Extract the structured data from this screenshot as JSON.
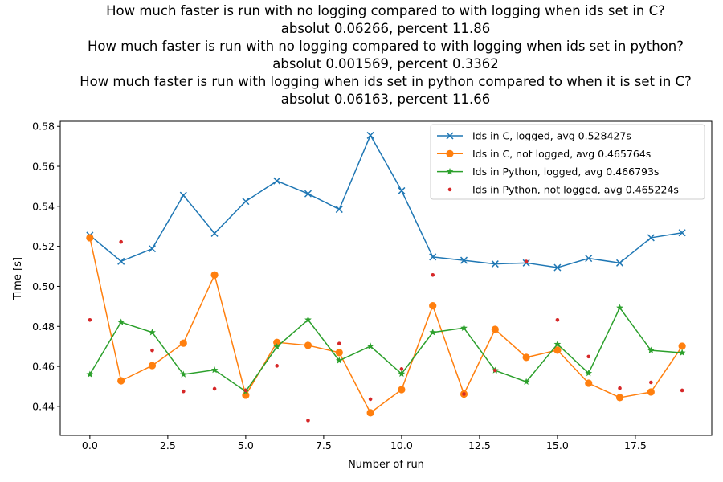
{
  "chart_data": {
    "type": "line",
    "title_lines": [
      "How much faster is run with no logging compared to with logging when ids set in C?",
      "absolut 0.06266, percent  11.86",
      "How much faster is run with no logging compared to with logging when ids set in python?",
      "absolut 0.001569, percent 0.3362",
      "How much faster is run with logging when ids set in python compared to when it is set in C?",
      "absolut 0.06163, percent 11.66"
    ],
    "xlabel": "Number of run",
    "ylabel": "Time [s]",
    "xlim": [
      -0.95,
      19.95
    ],
    "ylim": [
      0.4255,
      0.5825
    ],
    "x_ticks": [
      0.0,
      2.5,
      5.0,
      7.5,
      10.0,
      12.5,
      15.0,
      17.5
    ],
    "x_tick_labels": [
      "0.0",
      "2.5",
      "5.0",
      "7.5",
      "10.0",
      "12.5",
      "15.0",
      "17.5"
    ],
    "y_ticks": [
      0.44,
      0.46,
      0.48,
      0.5,
      0.52,
      0.54,
      0.56,
      0.58
    ],
    "y_tick_labels": [
      "0.44",
      "0.46",
      "0.48",
      "0.50",
      "0.52",
      "0.54",
      "0.56",
      "0.58"
    ],
    "grid": false,
    "legend_position": "upper-right",
    "x": [
      0,
      1,
      2,
      3,
      4,
      5,
      6,
      7,
      8,
      9,
      10,
      11,
      12,
      13,
      14,
      15,
      16,
      17,
      18,
      19
    ],
    "series": [
      {
        "name": "Ids in C, logged, avg 0.528427s",
        "color": "#1f77b4",
        "marker": "x",
        "line": true,
        "values": [
          0.5255,
          0.5125,
          0.5188,
          0.5455,
          0.5265,
          0.5425,
          0.5527,
          0.5463,
          0.5385,
          0.5755,
          0.5478,
          0.5147,
          0.513,
          0.5112,
          0.5117,
          0.5094,
          0.514,
          0.5117,
          0.5243,
          0.5268
        ]
      },
      {
        "name": "Ids in C, not logged, avg 0.465764s",
        "color": "#ff7f0e",
        "marker": "circle",
        "line": true,
        "values": [
          0.5243,
          0.4528,
          0.4604,
          0.4716,
          0.5057,
          0.4456,
          0.472,
          0.4705,
          0.4669,
          0.4368,
          0.4484,
          0.4903,
          0.4462,
          0.4785,
          0.4645,
          0.4681,
          0.4516,
          0.4444,
          0.4472,
          0.4701
        ]
      },
      {
        "name": "Ids in Python, logged, avg 0.466793s",
        "color": "#2ca02c",
        "marker": "star",
        "line": true,
        "values": [
          0.456,
          0.4821,
          0.477,
          0.456,
          0.4582,
          0.4475,
          0.4698,
          0.4833,
          0.4629,
          0.4701,
          0.4563,
          0.477,
          0.4792,
          0.458,
          0.4523,
          0.4711,
          0.4566,
          0.4893,
          0.468,
          0.4668
        ]
      },
      {
        "name": "Ids in Python, not logged, avg 0.465224s",
        "color": "#d62728",
        "marker": "dot",
        "line": false,
        "values": [
          0.4832,
          0.5222,
          0.468,
          0.4475,
          0.4488,
          0.448,
          0.4603,
          0.433,
          0.4714,
          0.4436,
          0.4587,
          0.5057,
          0.4462,
          0.458,
          0.5124,
          0.4832,
          0.4649,
          0.4491,
          0.452,
          0.448
        ]
      }
    ]
  }
}
